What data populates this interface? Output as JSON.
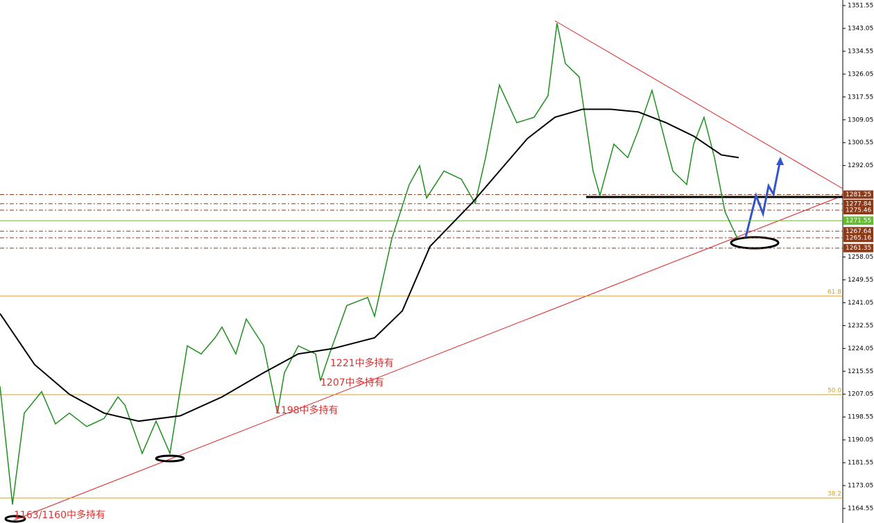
{
  "chart_data": {
    "type": "line",
    "ylim": [
      1159.13,
      1353.61
    ],
    "xlim": [
      0,
      1215
    ],
    "yticks": [
      1351.55,
      1343.05,
      1334.55,
      1326.05,
      1317.55,
      1309.05,
      1300.55,
      1292.05,
      1258.05,
      1249.55,
      1241.05,
      1232.55,
      1224.05,
      1215.55,
      1207.05,
      1198.55,
      1190.05,
      1181.55,
      1173.05,
      1164.55
    ],
    "series": [
      {
        "color": "#1f8f1f",
        "x": [
          0,
          18,
          35,
          60,
          80,
          100,
          125,
          150,
          170,
          180,
          205,
          225,
          245,
          270,
          290,
          310,
          320,
          340,
          355,
          380,
          400,
          410,
          430,
          455,
          462,
          475,
          500,
          530,
          540,
          565,
          590,
          605,
          615,
          640,
          665,
          685,
          700,
          720,
          745,
          770,
          790,
          803,
          815,
          835,
          855,
          865,
          885,
          905,
          920,
          940,
          955,
          970,
          990,
          1000,
          1015,
          1030,
          1045,
          1063
        ],
        "values": [
          1210,
          1166,
          1200,
          1208,
          1196,
          1200,
          1195,
          1198,
          1206,
          1203,
          1185,
          1197,
          1185,
          1225,
          1222,
          1228,
          1232,
          1222,
          1235,
          1225,
          1200,
          1215,
          1225,
          1222,
          1212,
          1222,
          1240,
          1243,
          1236,
          1265,
          1285,
          1292,
          1280,
          1290,
          1287,
          1278,
          1295,
          1322,
          1308,
          1310,
          1318,
          1345,
          1330,
          1325,
          1290,
          1281,
          1300,
          1295,
          1305,
          1320,
          1305,
          1290,
          1285,
          1300,
          1310,
          1295,
          1275,
          1265
        ]
      },
      {
        "color": "#000000",
        "x": [
          0,
          50,
          100,
          150,
          200,
          260,
          320,
          380,
          430,
          480,
          540,
          580,
          620,
          680,
          720,
          760,
          800,
          840,
          880,
          920,
          960,
          1000,
          1040,
          1065
        ],
        "values": [
          1237,
          1218,
          1207,
          1200,
          1197,
          1199,
          1206,
          1215,
          1222,
          1224,
          1228,
          1238,
          1262,
          1278,
          1290,
          1302,
          1310,
          1313,
          1313,
          1312,
          1308,
          1303,
          1296,
          1295
        ]
      }
    ],
    "levels": [
      {
        "value": 1281.25,
        "color": "#8b3a1a"
      },
      {
        "value": 1277.84,
        "color": "#8b3a1a"
      },
      {
        "value": 1275.46,
        "color": "#8b3a1a"
      },
      {
        "value": 1271.55,
        "color": "#66bb33"
      },
      {
        "value": 1267.64,
        "color": "#8b3a1a"
      },
      {
        "value": 1265.16,
        "color": "#8b3a1a"
      },
      {
        "value": 1261.35,
        "color": "#8b3a1a"
      }
    ],
    "fib_levels": [
      {
        "value": 1243.5,
        "label": "61.8"
      },
      {
        "value": 1206.85,
        "label": "50.0"
      },
      {
        "value": 1168.4,
        "label": "38.2"
      }
    ],
    "annotations": [
      "1221中多持有",
      "1207中多持有",
      "1198中多持有",
      "1163/1160中多持有"
    ]
  }
}
